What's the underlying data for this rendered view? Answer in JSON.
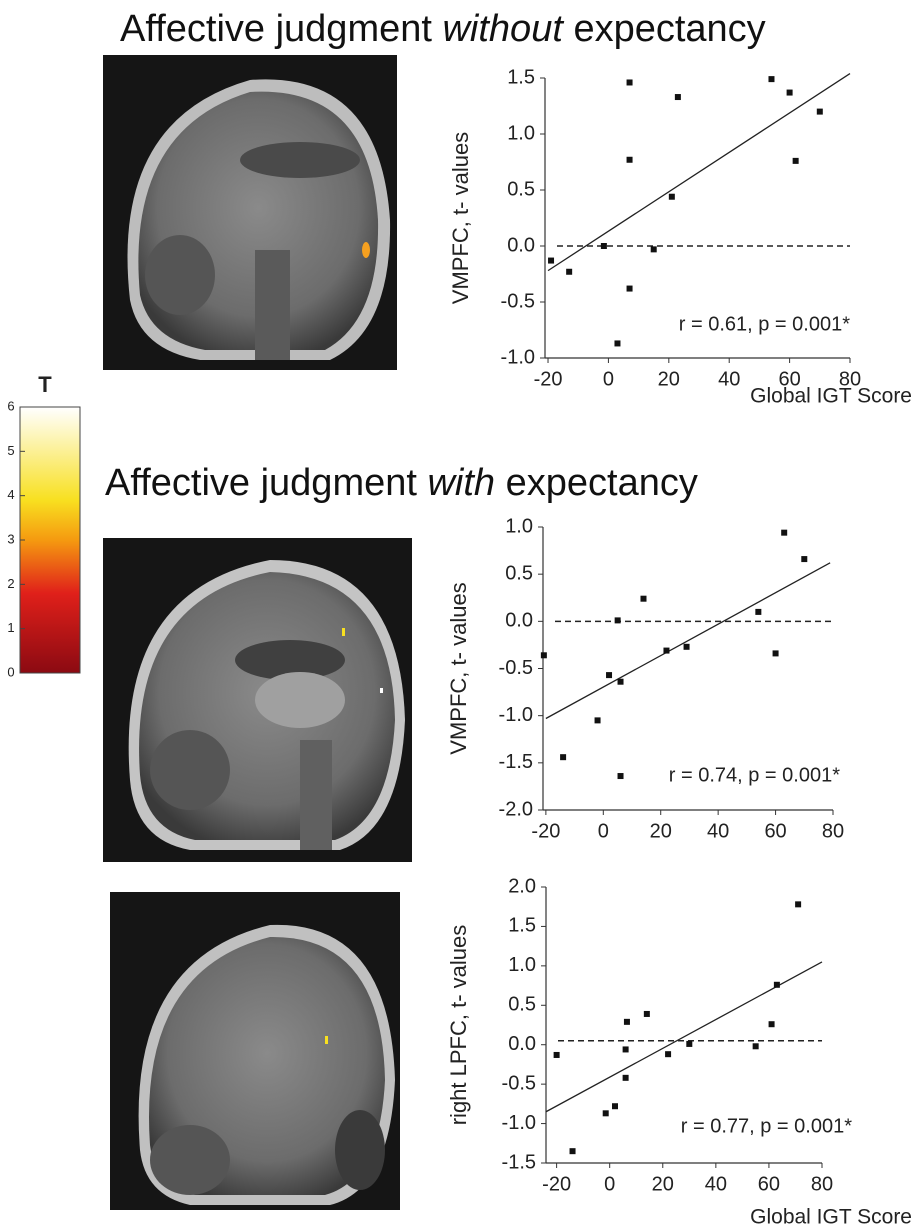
{
  "chart_data": [
    {
      "type": "scatter",
      "title": [
        "Affective judgment ",
        "without",
        " expectancy"
      ],
      "x_label": "Global IGT Score",
      "y_label": "VMPFC, t- values",
      "annotation": "r = 0.61, p = 0.001*",
      "x": [
        -19,
        -13,
        -1.5,
        7,
        7,
        7,
        3,
        15,
        21,
        23,
        54,
        60,
        62,
        70
      ],
      "values": [
        -0.13,
        -0.23,
        0.0,
        1.46,
        0.77,
        -0.38,
        -0.87,
        -0.03,
        0.44,
        1.33,
        1.49,
        1.37,
        0.76,
        1.2
      ],
      "color": "#111111",
      "fit": {
        "x": [
          -20,
          80
        ],
        "y": [
          -0.22,
          1.54
        ]
      },
      "reference_line": 0.0,
      "xlim": [
        -21,
        80
      ],
      "xticks": [
        -20,
        0,
        20,
        40,
        60,
        80
      ],
      "ylim": [
        -1.0,
        1.5
      ],
      "yticks": [
        {
          "value": -1.0,
          "label": "-1.0"
        },
        -0.5,
        {
          "value": 0.0,
          "label": "0.0"
        },
        0.5,
        {
          "value": 1.0,
          "label": "1.0"
        },
        1.5
      ]
    },
    {
      "type": "scatter",
      "title": [
        "Affective judgment ",
        "with",
        " expectancy"
      ],
      "y_label": "VMPFC, t- values",
      "annotation": "r = 0.74, p = 0.001*",
      "x": [
        -20.7,
        -14,
        -2,
        2,
        6,
        5,
        6,
        14,
        22,
        29,
        54,
        60,
        63,
        70
      ],
      "values": [
        -0.36,
        -1.44,
        -1.05,
        -0.57,
        -0.64,
        0.01,
        -1.64,
        0.24,
        -0.31,
        -0.27,
        0.1,
        -0.34,
        0.94,
        0.66
      ],
      "color": "#111111",
      "fit": {
        "x": [
          -20,
          79
        ],
        "y": [
          -1.03,
          0.62
        ]
      },
      "reference_line": 0.0,
      "xlim": [
        -21,
        80
      ],
      "xticks": [
        -20,
        0,
        20,
        40,
        60,
        80
      ],
      "ylim": [
        -2.0,
        1.0
      ],
      "yticks": [
        {
          "value": -2.0,
          "label": "-2.0"
        },
        -1.5,
        {
          "value": -1.0,
          "label": "-1.0"
        },
        -0.5,
        {
          "value": 0.0,
          "label": "0.0"
        },
        0.5,
        {
          "value": 1.0,
          "label": "1.0"
        }
      ]
    },
    {
      "type": "scatter",
      "x_label": "Global IGT Score",
      "y_label": "right LPFC, t- values",
      "annotation": "r = 0.77, p = 0.001*",
      "x": [
        -20,
        -14,
        -1.5,
        2,
        6,
        6,
        6.5,
        14,
        22,
        30,
        55,
        61,
        63,
        71
      ],
      "values": [
        -0.13,
        -1.35,
        -0.87,
        -0.78,
        -0.06,
        -0.42,
        0.29,
        0.39,
        -0.12,
        0.01,
        -0.02,
        0.26,
        0.76,
        1.78
      ],
      "color": "#111111",
      "fit": {
        "x": [
          -24,
          80
        ],
        "y": [
          -0.85,
          1.05
        ]
      },
      "reference_line": 0.05,
      "xlim": [
        -24,
        80
      ],
      "xticks": [
        -20,
        0,
        20,
        40,
        60,
        80
      ],
      "ylim": [
        -1.5,
        2.0
      ],
      "yticks": [
        -1.5,
        {
          "value": -1.0,
          "label": "-1.0"
        },
        -0.5,
        {
          "value": 0.0,
          "label": "0.0"
        },
        0.5,
        {
          "value": 1.0,
          "label": "1.0"
        },
        1.5,
        {
          "value": 2.0,
          "label": "2.0"
        }
      ]
    }
  ],
  "colorbar": {
    "title": "T",
    "ticks": [
      0,
      1,
      2,
      3,
      4,
      5,
      6
    ],
    "lim": [
      0,
      6
    ]
  }
}
